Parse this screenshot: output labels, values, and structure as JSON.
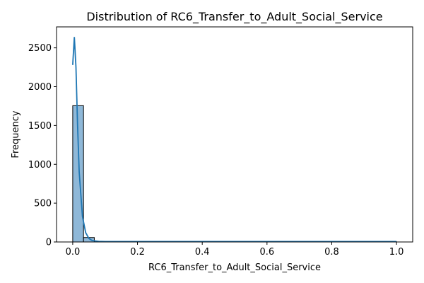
{
  "chart_data": {
    "type": "bar",
    "title": "Distribution of RC6_Transfer_to_Adult_Social_Service",
    "xlabel": "RC6_Transfer_to_Adult_Social_Service",
    "ylabel": "Frequency",
    "xlim": [
      -0.05,
      1.05
    ],
    "ylim": [
      0,
      2770
    ],
    "xticks": [
      "0.0",
      "0.2",
      "0.4",
      "0.6",
      "0.8",
      "1.0"
    ],
    "xtick_values": [
      0.0,
      0.2,
      0.4,
      0.6,
      0.8,
      1.0
    ],
    "yticks": [
      "0",
      "500",
      "1000",
      "1500",
      "2000",
      "2500"
    ],
    "ytick_values": [
      0,
      500,
      1000,
      1500,
      2000,
      2500
    ],
    "bins": {
      "edges_start": 0.0,
      "bin_width": 0.03333,
      "counts": [
        1755,
        57,
        2,
        1,
        1,
        1,
        1,
        1,
        1,
        1,
        1,
        1,
        1,
        1,
        1,
        1,
        1,
        1,
        1,
        1,
        1,
        1,
        1,
        1,
        1,
        1,
        1,
        1,
        1,
        3
      ]
    },
    "kde": {
      "x": [
        0.0,
        0.005,
        0.01,
        0.015,
        0.02,
        0.03,
        0.04,
        0.05,
        0.06,
        0.08,
        0.1,
        0.15,
        0.2,
        0.3,
        0.4,
        0.5,
        0.6,
        0.7,
        0.8,
        0.9,
        1.0
      ],
      "y": [
        2280,
        2640,
        2250,
        1500,
        900,
        330,
        120,
        45,
        18,
        8,
        6,
        5,
        5,
        5,
        5,
        5,
        5,
        5,
        5,
        5,
        5
      ]
    },
    "colors": {
      "bar_fill": "#8fb8d8",
      "bar_edge": "#000000",
      "kde_line": "#1f77b4"
    },
    "grid": false,
    "legend": "none"
  }
}
